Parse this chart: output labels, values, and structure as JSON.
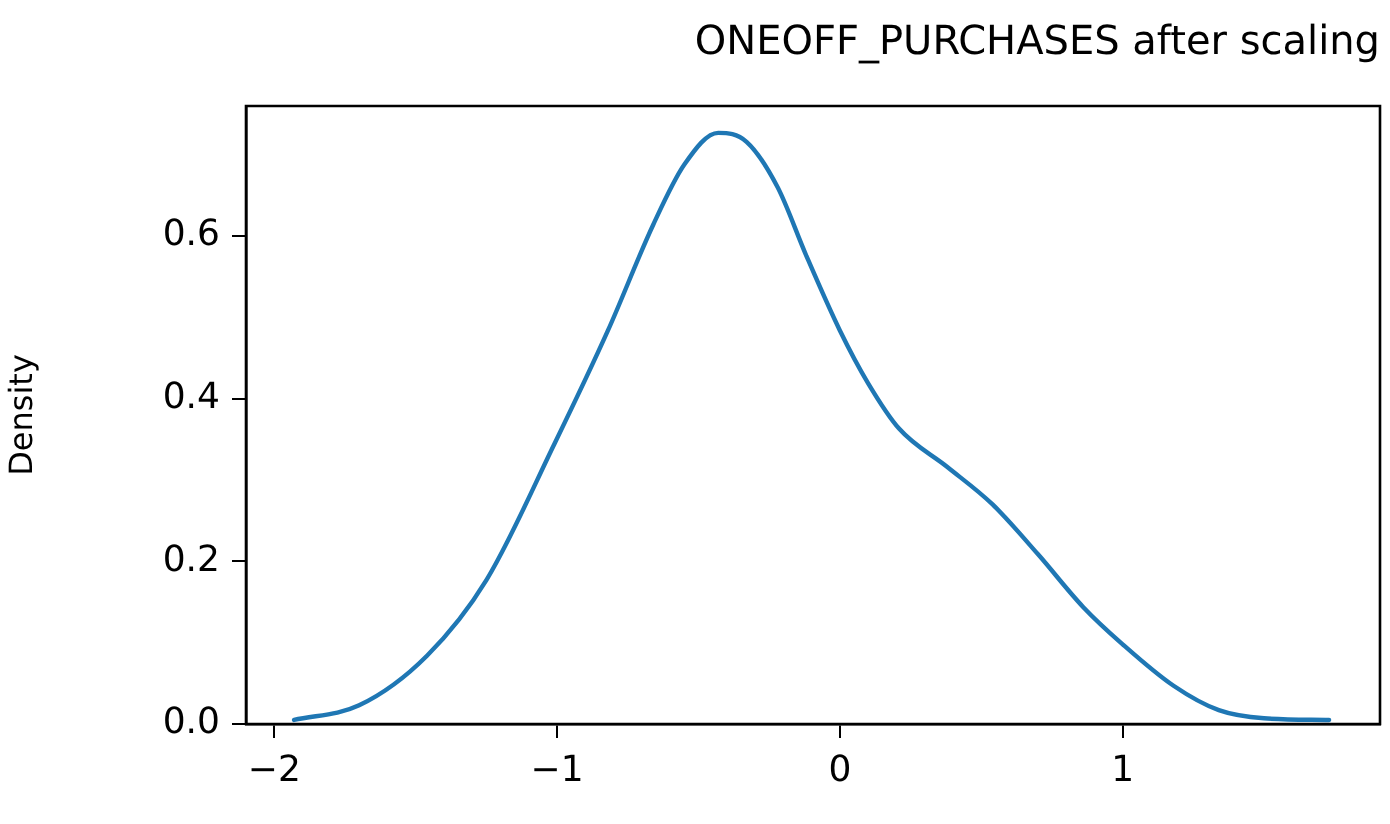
{
  "chart_data": {
    "type": "line",
    "title": "ONEOFF_PURCHASES after scaling",
    "ylabel": "Density",
    "x": [
      -1.93,
      -1.7,
      -1.46,
      -1.25,
      -1.01,
      -0.82,
      -0.66,
      -0.55,
      -0.43,
      -0.33,
      -0.22,
      -0.12,
      0.0,
      0.1,
      0.21,
      0.38,
      0.54,
      0.7,
      0.86,
      1.0,
      1.18,
      1.34,
      1.5,
      1.73
    ],
    "series": [
      {
        "color": "#1f77b4",
        "values": [
          0.005,
          0.023,
          0.084,
          0.177,
          0.344,
          0.484,
          0.614,
          0.688,
          0.727,
          0.716,
          0.66,
          0.577,
          0.484,
          0.419,
          0.363,
          0.316,
          0.27,
          0.209,
          0.144,
          0.098,
          0.047,
          0.017,
          0.007,
          0.005
        ]
      }
    ],
    "xlim": [
      -2.1,
      1.91
    ],
    "xticks": [
      {
        "value": -2,
        "label": "−2"
      },
      {
        "value": -1,
        "label": "−1"
      },
      0,
      1
    ],
    "ylim": [
      0,
      0.76
    ],
    "yticks": [
      {
        "value": 0,
        "label": "0.0"
      },
      {
        "value": 0.2,
        "label": "0.2"
      },
      {
        "value": 0.4,
        "label": "0.4"
      },
      {
        "value": 0.6,
        "label": "0.6"
      }
    ],
    "grid": false,
    "legend": false,
    "marker": "none",
    "line_style": "solid"
  }
}
